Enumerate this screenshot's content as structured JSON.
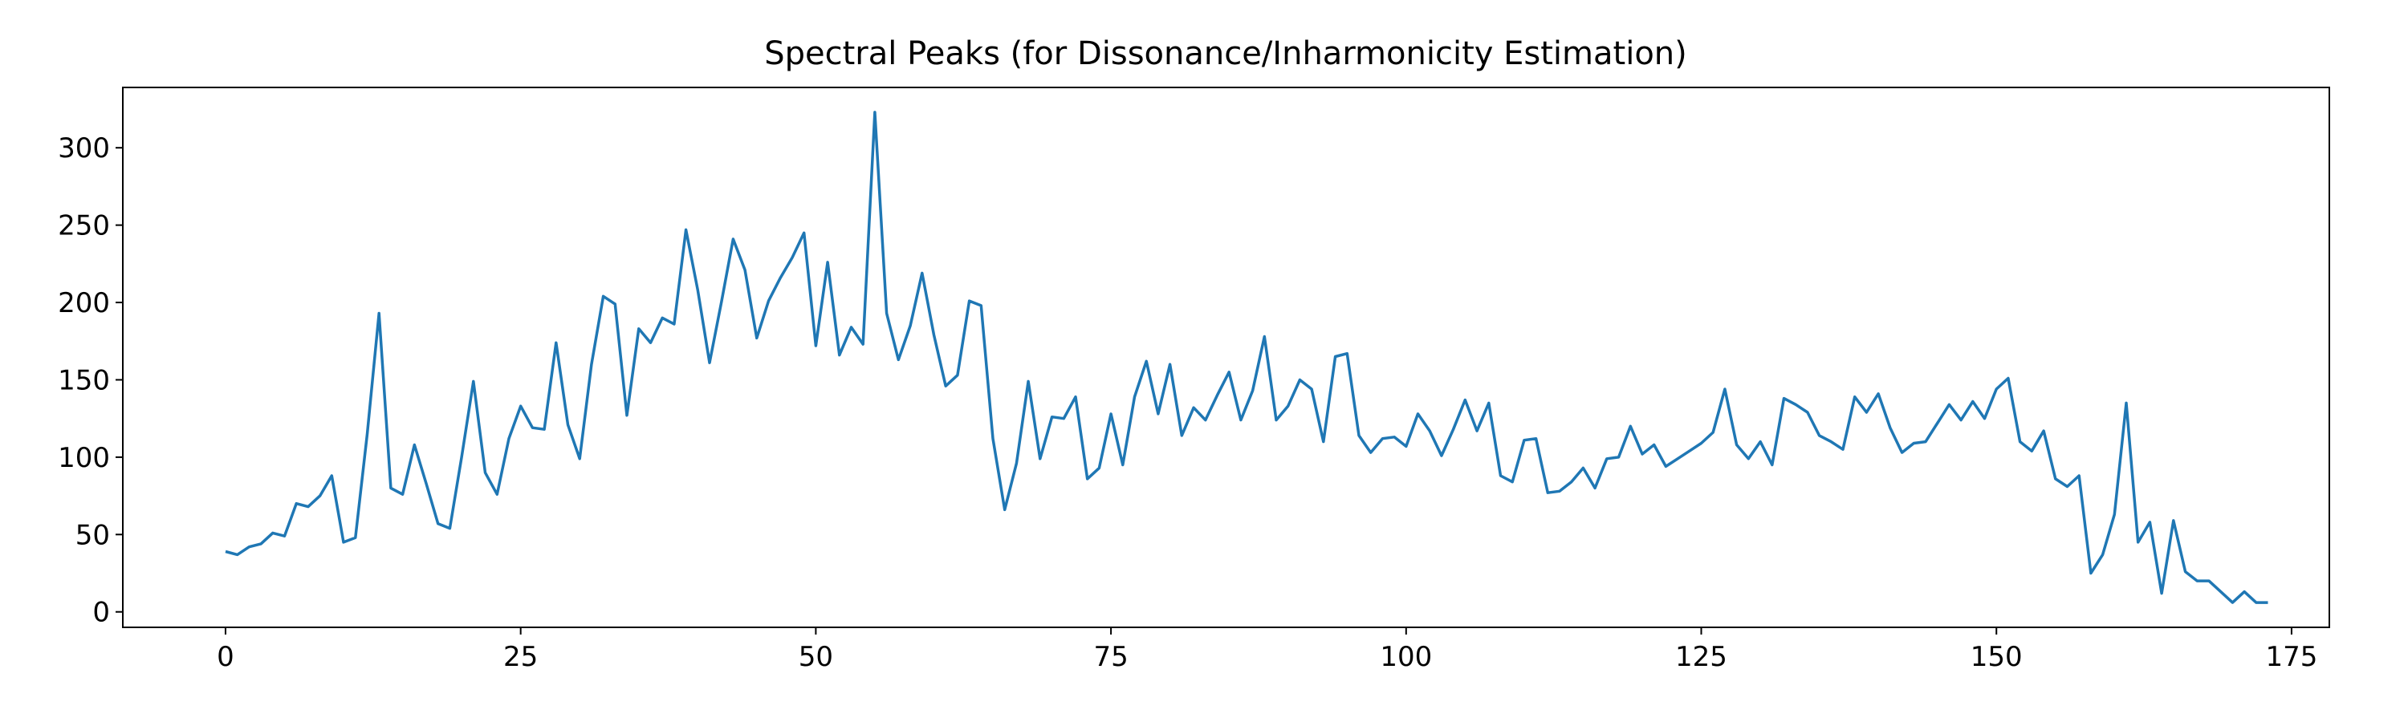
{
  "chart_data": {
    "type": "line",
    "title": "Spectral Peaks (for Dissonance/Inharmonicity Estimation)",
    "x": [
      0,
      1,
      2,
      3,
      4,
      5,
      6,
      7,
      8,
      9,
      10,
      11,
      12,
      13,
      14,
      15,
      16,
      17,
      18,
      19,
      20,
      21,
      22,
      23,
      24,
      25,
      26,
      27,
      28,
      29,
      30,
      31,
      32,
      33,
      34,
      35,
      36,
      37,
      38,
      39,
      40,
      41,
      42,
      43,
      44,
      45,
      46,
      47,
      48,
      49,
      50,
      51,
      52,
      53,
      54,
      55,
      56,
      57,
      58,
      59,
      60,
      61,
      62,
      63,
      64,
      65,
      66,
      67,
      68,
      69,
      70,
      71,
      72,
      73,
      74,
      75,
      76,
      77,
      78,
      79,
      80,
      81,
      82,
      83,
      84,
      85,
      86,
      87,
      88,
      89,
      90,
      91,
      92,
      93,
      94,
      95,
      96,
      97,
      98,
      99,
      100,
      101,
      102,
      103,
      104,
      105,
      106,
      107,
      108,
      109,
      110,
      111,
      112,
      113,
      114,
      115,
      116,
      117,
      118,
      119,
      120,
      121,
      122,
      123,
      124,
      125,
      126,
      127,
      128,
      129,
      130,
      131,
      132,
      133,
      134,
      135,
      136,
      137,
      138,
      139,
      140,
      141,
      142,
      143,
      144,
      145,
      146,
      147,
      148,
      149,
      150,
      151,
      152,
      153,
      154,
      155,
      156,
      157,
      158,
      159,
      160,
      161,
      162,
      163,
      164,
      165,
      166,
      167,
      168,
      169,
      170,
      171,
      172,
      173
    ],
    "series": [
      {
        "name": "Spectral Peaks",
        "color": "#1f77b4",
        "values": [
          39,
          37,
          42,
          44,
          51,
          49,
          70,
          68,
          75,
          88,
          45,
          48,
          115,
          193,
          80,
          76,
          108,
          83,
          57,
          54,
          100,
          149,
          90,
          76,
          112,
          133,
          119,
          118,
          174,
          121,
          99,
          160,
          204,
          199,
          127,
          183,
          174,
          190,
          186,
          247,
          208,
          161,
          200,
          241,
          221,
          177,
          201,
          216,
          229,
          245,
          172,
          226,
          166,
          184,
          173,
          323,
          193,
          163,
          185,
          219,
          179,
          146,
          153,
          201,
          198,
          112,
          66,
          96,
          149,
          99,
          126,
          125,
          139,
          86,
          93,
          128,
          95,
          139,
          162,
          128,
          160,
          114,
          132,
          124,
          140,
          155,
          124,
          143,
          178,
          124,
          133,
          150,
          144,
          110,
          165,
          167,
          114,
          103,
          112,
          113,
          107,
          128,
          117,
          101,
          118,
          137,
          117,
          135,
          88,
          84,
          111,
          112,
          77,
          78,
          84,
          93,
          80,
          99,
          100,
          120,
          102,
          108,
          94,
          99,
          104,
          109,
          116,
          144,
          108,
          99,
          110,
          95,
          138,
          134,
          129,
          114,
          110,
          105,
          139,
          129,
          141,
          119,
          103,
          109,
          110,
          122,
          134,
          124,
          136,
          125,
          144,
          151,
          110,
          104,
          117,
          86,
          81,
          88,
          25,
          37,
          63,
          135,
          45,
          58,
          12,
          59,
          26,
          20,
          20,
          13,
          6,
          13,
          6,
          6
        ]
      }
    ],
    "xlim": [
      -8.7,
      178.2
    ],
    "xticks": [
      0,
      25,
      50,
      75,
      100,
      125,
      150,
      175
    ],
    "ylim": [
      -10,
      339
    ],
    "yticks": [
      0,
      50,
      100,
      150,
      200,
      250,
      300
    ]
  }
}
